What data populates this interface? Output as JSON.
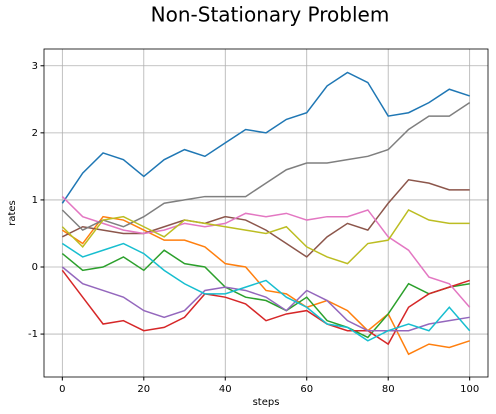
{
  "chart_data": {
    "type": "line",
    "title": "Non-Stationary Problem",
    "x_label": "steps",
    "y_label": "rates",
    "x": [
      0,
      5,
      10,
      15,
      20,
      25,
      30,
      35,
      40,
      45,
      50,
      55,
      60,
      65,
      70,
      75,
      80,
      85,
      90,
      95,
      100
    ],
    "series": [
      {
        "color": "#1f77b4",
        "values": [
          0.95,
          1.4,
          1.7,
          1.6,
          1.35,
          1.6,
          1.75,
          1.65,
          1.85,
          2.05,
          2.0,
          2.2,
          2.3,
          2.7,
          2.9,
          2.75,
          2.25,
          2.3,
          2.45,
          2.65,
          2.55
        ]
      },
      {
        "color": "#ff7f0e",
        "values": [
          0.55,
          0.35,
          0.75,
          0.7,
          0.55,
          0.4,
          0.4,
          0.3,
          0.05,
          0.0,
          -0.35,
          -0.4,
          -0.6,
          -0.5,
          -0.65,
          -0.95,
          -0.7,
          -1.3,
          -1.15,
          -1.2,
          -1.1
        ]
      },
      {
        "color": "#2ca02c",
        "values": [
          0.2,
          -0.05,
          0.0,
          0.15,
          -0.05,
          0.25,
          0.05,
          0.0,
          -0.3,
          -0.45,
          -0.5,
          -0.65,
          -0.45,
          -0.8,
          -0.9,
          -1.05,
          -0.7,
          -0.25,
          -0.4,
          -0.3,
          -0.25
        ]
      },
      {
        "color": "#d62728",
        "values": [
          -0.05,
          -0.45,
          -0.85,
          -0.8,
          -0.95,
          -0.9,
          -0.75,
          -0.4,
          -0.45,
          -0.55,
          -0.8,
          -0.7,
          -0.65,
          -0.85,
          -0.95,
          -0.95,
          -1.15,
          -0.6,
          -0.4,
          -0.3,
          -0.2
        ]
      },
      {
        "color": "#9467bd",
        "values": [
          0.0,
          -0.25,
          -0.35,
          -0.45,
          -0.65,
          -0.75,
          -0.65,
          -0.35,
          -0.3,
          -0.35,
          -0.45,
          -0.65,
          -0.35,
          -0.5,
          -0.8,
          -0.95,
          -0.95,
          -0.95,
          -0.85,
          -0.8,
          -0.75
        ]
      },
      {
        "color": "#8c564b",
        "values": [
          0.45,
          0.6,
          0.55,
          0.5,
          0.5,
          0.6,
          0.7,
          0.65,
          0.75,
          0.7,
          0.55,
          0.35,
          0.15,
          0.45,
          0.65,
          0.55,
          0.95,
          1.3,
          1.25,
          1.15,
          1.15
        ]
      },
      {
        "color": "#e377c2",
        "values": [
          1.05,
          0.75,
          0.65,
          0.55,
          0.5,
          0.55,
          0.65,
          0.6,
          0.65,
          0.8,
          0.75,
          0.8,
          0.7,
          0.75,
          0.75,
          0.85,
          0.45,
          0.25,
          -0.15,
          -0.25,
          -0.6
        ]
      },
      {
        "color": "#7f7f7f",
        "values": [
          0.85,
          0.55,
          0.7,
          0.6,
          0.75,
          0.95,
          1.0,
          1.05,
          1.05,
          1.05,
          1.25,
          1.45,
          1.55,
          1.55,
          1.6,
          1.65,
          1.75,
          2.05,
          2.25,
          2.25,
          2.45
        ]
      },
      {
        "color": "#bcbd22",
        "values": [
          0.6,
          0.3,
          0.7,
          0.75,
          0.6,
          0.45,
          0.7,
          0.65,
          0.6,
          0.55,
          0.5,
          0.6,
          0.3,
          0.15,
          0.05,
          0.35,
          0.4,
          0.85,
          0.7,
          0.65,
          0.65
        ]
      },
      {
        "color": "#17becf",
        "values": [
          0.35,
          0.15,
          0.25,
          0.35,
          0.2,
          -0.05,
          -0.25,
          -0.4,
          -0.4,
          -0.3,
          -0.2,
          -0.45,
          -0.6,
          -0.85,
          -0.9,
          -1.1,
          -0.95,
          -0.85,
          -0.95,
          -0.6,
          -0.95
        ]
      }
    ],
    "xlim": [
      -4.5,
      104.5
    ],
    "xticks": [
      0,
      20,
      40,
      60,
      80,
      100
    ],
    "ylim": [
      -1.64,
      3.25
    ],
    "yticks": [
      -1,
      0,
      1,
      2,
      3
    ],
    "grid": true
  }
}
